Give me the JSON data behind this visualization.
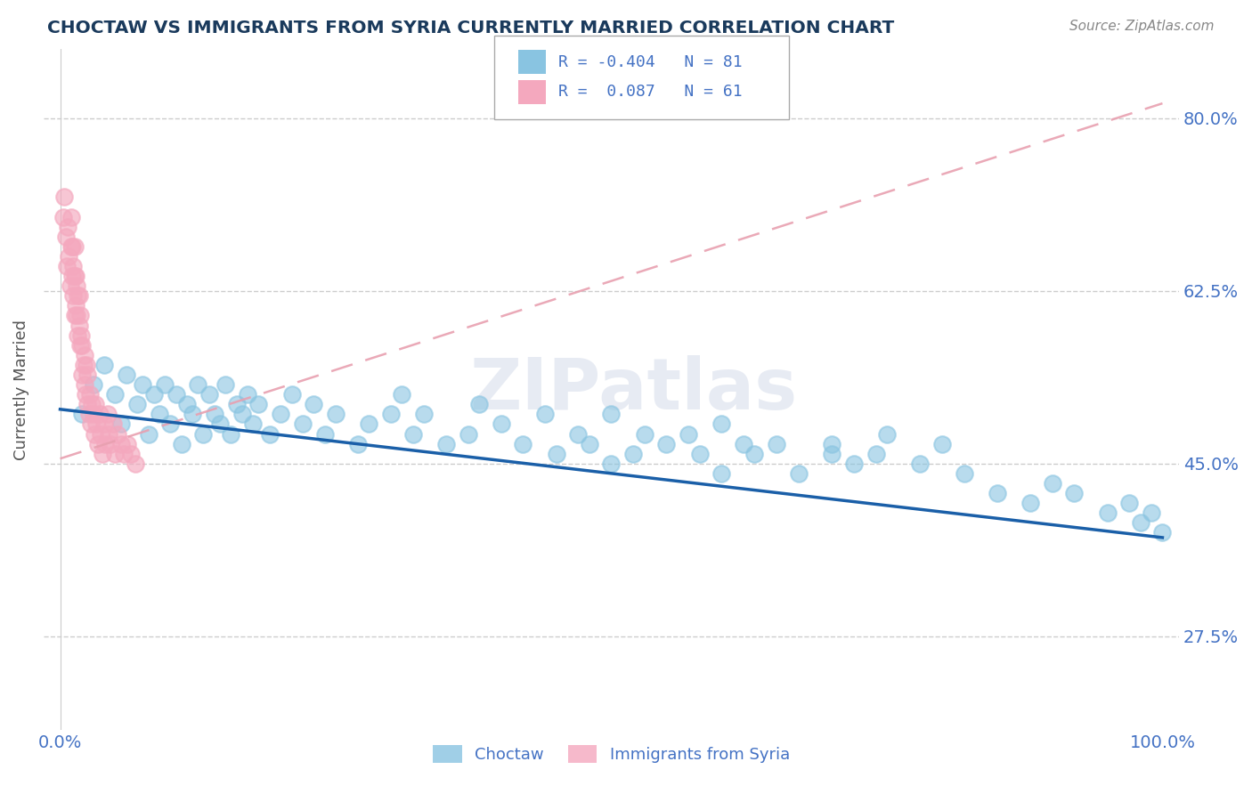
{
  "title": "CHOCTAW VS IMMIGRANTS FROM SYRIA CURRENTLY MARRIED CORRELATION CHART",
  "source_text": "Source: ZipAtlas.com",
  "ylabel": "Currently Married",
  "xmin": 0.0,
  "xmax": 1.0,
  "ymin": 0.18,
  "ymax": 0.87,
  "ytick_vals": [
    0.275,
    0.45,
    0.625,
    0.8
  ],
  "ytick_labels": [
    "27.5%",
    "45.0%",
    "62.5%",
    "80.0%"
  ],
  "grid_color": "#cccccc",
  "background_color": "#ffffff",
  "watermark": "ZIPatlas",
  "color_blue": "#89c4e1",
  "color_pink": "#f4a8be",
  "line_blue": "#1a5fa8",
  "line_pink": "#e8a0b0",
  "title_color": "#1a3a5c",
  "axis_label_color": "#4472c4",
  "legend_color": "#4472c4",
  "choctaw_x": [
    0.02,
    0.03,
    0.04,
    0.05,
    0.055,
    0.06,
    0.07,
    0.075,
    0.08,
    0.085,
    0.09,
    0.095,
    0.1,
    0.105,
    0.11,
    0.115,
    0.12,
    0.125,
    0.13,
    0.135,
    0.14,
    0.145,
    0.15,
    0.155,
    0.16,
    0.165,
    0.17,
    0.175,
    0.18,
    0.19,
    0.2,
    0.21,
    0.22,
    0.23,
    0.24,
    0.25,
    0.27,
    0.28,
    0.3,
    0.31,
    0.32,
    0.33,
    0.35,
    0.37,
    0.38,
    0.4,
    0.42,
    0.44,
    0.45,
    0.47,
    0.48,
    0.5,
    0.52,
    0.53,
    0.55,
    0.57,
    0.58,
    0.6,
    0.62,
    0.63,
    0.65,
    0.67,
    0.7,
    0.72,
    0.74,
    0.75,
    0.78,
    0.8,
    0.82,
    0.85,
    0.88,
    0.9,
    0.92,
    0.95,
    0.97,
    0.98,
    0.99,
    1.0,
    0.5,
    0.6,
    0.7
  ],
  "choctaw_y": [
    0.5,
    0.53,
    0.55,
    0.52,
    0.49,
    0.54,
    0.51,
    0.53,
    0.48,
    0.52,
    0.5,
    0.53,
    0.49,
    0.52,
    0.47,
    0.51,
    0.5,
    0.53,
    0.48,
    0.52,
    0.5,
    0.49,
    0.53,
    0.48,
    0.51,
    0.5,
    0.52,
    0.49,
    0.51,
    0.48,
    0.5,
    0.52,
    0.49,
    0.51,
    0.48,
    0.5,
    0.47,
    0.49,
    0.5,
    0.52,
    0.48,
    0.5,
    0.47,
    0.48,
    0.51,
    0.49,
    0.47,
    0.5,
    0.46,
    0.48,
    0.47,
    0.5,
    0.46,
    0.48,
    0.47,
    0.48,
    0.46,
    0.49,
    0.47,
    0.46,
    0.47,
    0.44,
    0.47,
    0.45,
    0.46,
    0.48,
    0.45,
    0.47,
    0.44,
    0.42,
    0.41,
    0.43,
    0.42,
    0.4,
    0.41,
    0.39,
    0.4,
    0.38,
    0.45,
    0.44,
    0.46
  ],
  "syria_x": [
    0.003,
    0.004,
    0.005,
    0.006,
    0.007,
    0.008,
    0.009,
    0.01,
    0.01,
    0.011,
    0.011,
    0.012,
    0.012,
    0.013,
    0.013,
    0.013,
    0.014,
    0.014,
    0.015,
    0.015,
    0.016,
    0.016,
    0.017,
    0.017,
    0.018,
    0.018,
    0.019,
    0.02,
    0.02,
    0.021,
    0.022,
    0.022,
    0.023,
    0.024,
    0.025,
    0.025,
    0.026,
    0.027,
    0.028,
    0.029,
    0.03,
    0.031,
    0.032,
    0.033,
    0.034,
    0.036,
    0.037,
    0.038,
    0.04,
    0.041,
    0.043,
    0.044,
    0.046,
    0.048,
    0.05,
    0.052,
    0.055,
    0.058,
    0.061,
    0.064,
    0.068
  ],
  "syria_y": [
    0.7,
    0.72,
    0.68,
    0.65,
    0.69,
    0.66,
    0.63,
    0.67,
    0.7,
    0.64,
    0.67,
    0.62,
    0.65,
    0.6,
    0.64,
    0.67,
    0.61,
    0.64,
    0.6,
    0.63,
    0.58,
    0.62,
    0.59,
    0.62,
    0.57,
    0.6,
    0.58,
    0.54,
    0.57,
    0.55,
    0.53,
    0.56,
    0.52,
    0.55,
    0.51,
    0.54,
    0.5,
    0.52,
    0.49,
    0.51,
    0.5,
    0.48,
    0.51,
    0.49,
    0.47,
    0.5,
    0.48,
    0.46,
    0.49,
    0.47,
    0.5,
    0.48,
    0.47,
    0.49,
    0.46,
    0.48,
    0.47,
    0.46,
    0.47,
    0.46,
    0.45
  ],
  "blue_line_x": [
    0.0,
    1.0
  ],
  "blue_line_y": [
    0.505,
    0.375
  ],
  "pink_line_x": [
    0.0,
    1.0
  ],
  "pink_line_y": [
    0.455,
    0.815
  ]
}
